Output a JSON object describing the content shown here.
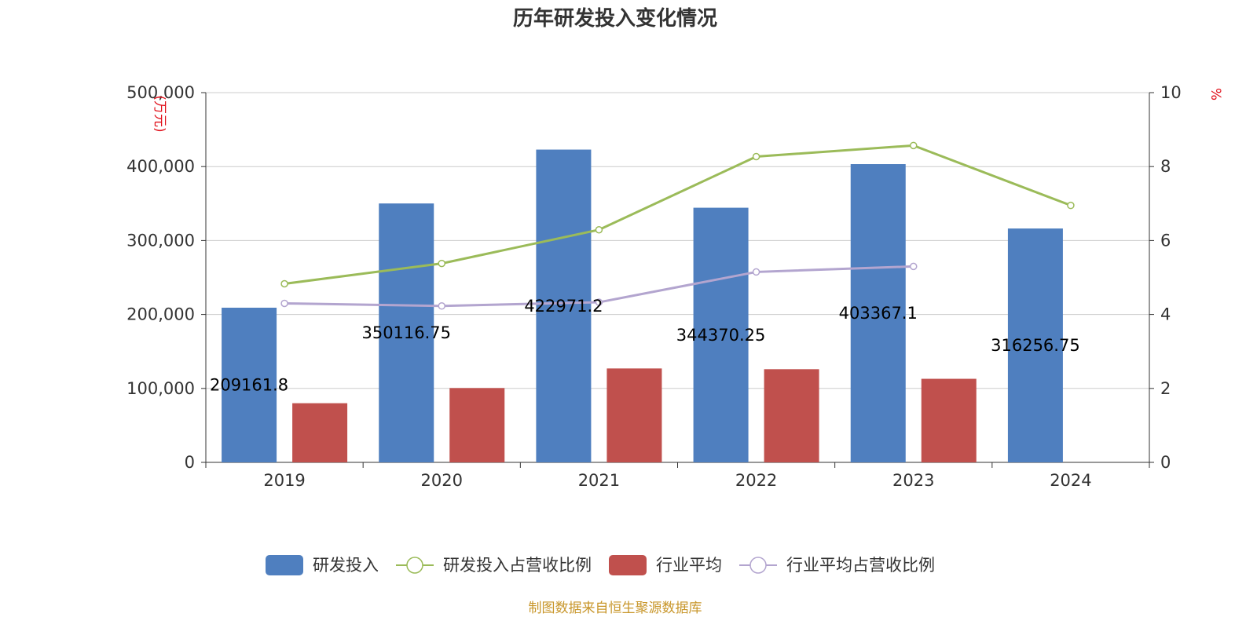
{
  "chart_data": {
    "type": "bar",
    "title": "历年研发投入变化情况",
    "categories": [
      "2019",
      "2020",
      "2021",
      "2022",
      "2023",
      "2024"
    ],
    "left_axis": {
      "unit": "(万元)",
      "min": 0,
      "max": 500000,
      "ticks": [
        "0",
        "100,000",
        "200,000",
        "300,000",
        "400,000",
        "500,000"
      ]
    },
    "right_axis": {
      "unit": "%",
      "min": 0,
      "max": 10,
      "ticks": [
        "0",
        "2",
        "4",
        "6",
        "8",
        "10"
      ]
    },
    "series": [
      {
        "name": "研发投入",
        "kind": "bar",
        "axis": "left",
        "color": "#4f7fbf",
        "values": [
          209161.8,
          350116.75,
          422971.2,
          344370.25,
          403367.1,
          316256.75
        ],
        "labels": [
          "209161.8",
          "350116.75",
          "422971.2",
          "344370.25",
          "403367.1",
          "316256.75"
        ]
      },
      {
        "name": "研发投入占营收比例",
        "kind": "line",
        "axis": "right",
        "color": "#9bbb59",
        "values": [
          4.83,
          5.38,
          6.29,
          8.27,
          8.57,
          6.95
        ]
      },
      {
        "name": "行业平均",
        "kind": "bar",
        "axis": "left",
        "color": "#c0504d",
        "values": [
          80000,
          100500,
          127000,
          126000,
          113000,
          null
        ]
      },
      {
        "name": "行业平均占营收比例",
        "kind": "line",
        "axis": "right",
        "color": "#b3a5cf",
        "values": [
          4.3,
          4.23,
          4.33,
          5.15,
          5.3,
          null
        ]
      }
    ],
    "legend_position": "bottom-center",
    "grid": true
  },
  "source_text": "制图数据来自恒生聚源数据库"
}
